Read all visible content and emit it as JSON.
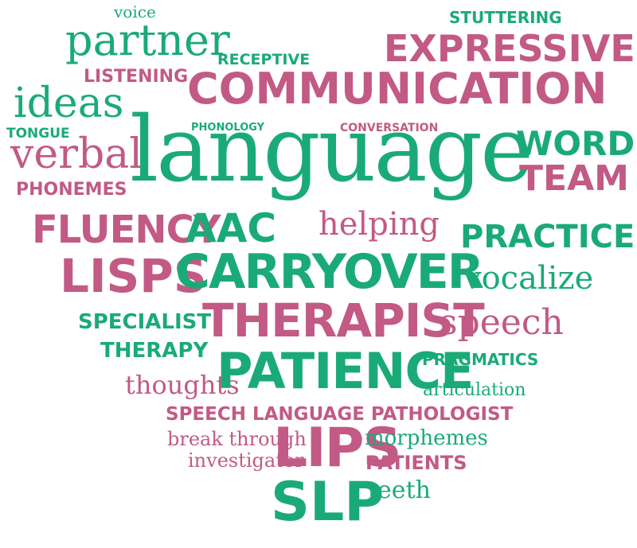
{
  "colors": {
    "green": "#1aaa78",
    "pink": "#c25a85",
    "background": "#ffffff"
  },
  "words": [
    {
      "text": "voice",
      "color": "green"
    },
    {
      "text": "STUTTERING",
      "color": "green"
    },
    {
      "text": "partner",
      "color": "green"
    },
    {
      "text": "RECEPTIVE",
      "color": "green"
    },
    {
      "text": "EXPRESSIVE",
      "color": "pink"
    },
    {
      "text": "LISTENING",
      "color": "pink"
    },
    {
      "text": "COMMUNICATION",
      "color": "pink"
    },
    {
      "text": "ideas",
      "color": "green"
    },
    {
      "text": "TONGUE",
      "color": "green"
    },
    {
      "text": "PHONOLOGY",
      "color": "green"
    },
    {
      "text": "CONVERSATION",
      "color": "pink"
    },
    {
      "text": "verbal",
      "color": "pink"
    },
    {
      "text": "language",
      "color": "green"
    },
    {
      "text": "WORDS",
      "color": "green"
    },
    {
      "text": "TEAM",
      "color": "pink"
    },
    {
      "text": "PHONEMES",
      "color": "pink"
    },
    {
      "text": "helping",
      "color": "pink"
    },
    {
      "text": "FLUENCY",
      "color": "pink"
    },
    {
      "text": "AAC",
      "color": "green"
    },
    {
      "text": "PRACTICE",
      "color": "green"
    },
    {
      "text": "LISPS",
      "color": "pink"
    },
    {
      "text": "CARRYOVER",
      "color": "green"
    },
    {
      "text": "vocalize",
      "color": "green"
    },
    {
      "text": "SPECIALIST",
      "color": "green"
    },
    {
      "text": "THERAPIST",
      "color": "pink"
    },
    {
      "text": "speech",
      "color": "pink"
    },
    {
      "text": "THERAPY",
      "color": "green"
    },
    {
      "text": "PRAGMATICS",
      "color": "green"
    },
    {
      "text": "thoughts",
      "color": "pink"
    },
    {
      "text": "PATIENCE",
      "color": "green"
    },
    {
      "text": "articulation",
      "color": "green"
    },
    {
      "text": "SPEECH LANGUAGE PATHOLOGIST",
      "color": "pink"
    },
    {
      "text": "break through",
      "color": "pink"
    },
    {
      "text": "LIPS",
      "color": "pink"
    },
    {
      "text": "morphemes",
      "color": "green"
    },
    {
      "text": "investigator",
      "color": "pink"
    },
    {
      "text": "PATIENTS",
      "color": "pink"
    },
    {
      "text": "teeth",
      "color": "green"
    },
    {
      "text": "SLP",
      "color": "green"
    }
  ]
}
